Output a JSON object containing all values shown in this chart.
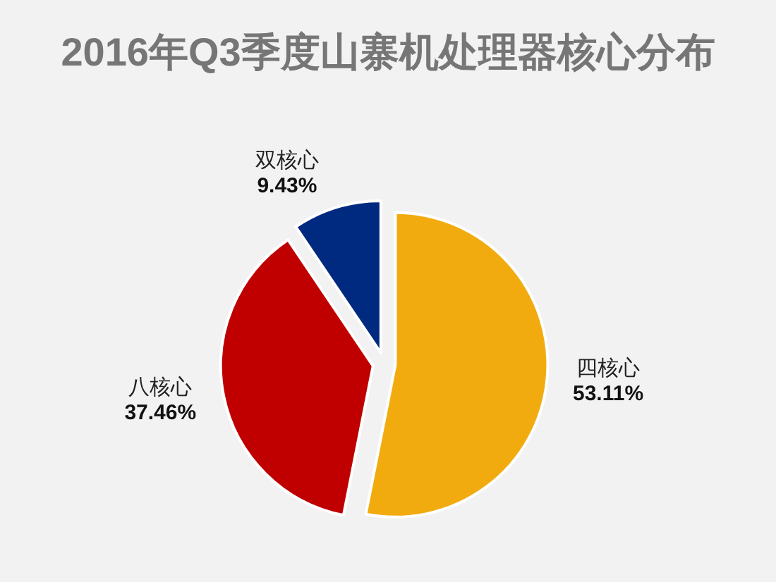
{
  "chart_data": {
    "type": "pie",
    "title": "2016年Q3季度山寨机处理器核心分布",
    "categories": [
      "四核心",
      "八核心",
      "双核心"
    ],
    "values": [
      53.11,
      37.46,
      9.43
    ],
    "colors": [
      "#f2ab0f",
      "#c00000",
      "#002a80"
    ],
    "value_labels": [
      "53.11%",
      "37.46%",
      "9.43%"
    ]
  }
}
